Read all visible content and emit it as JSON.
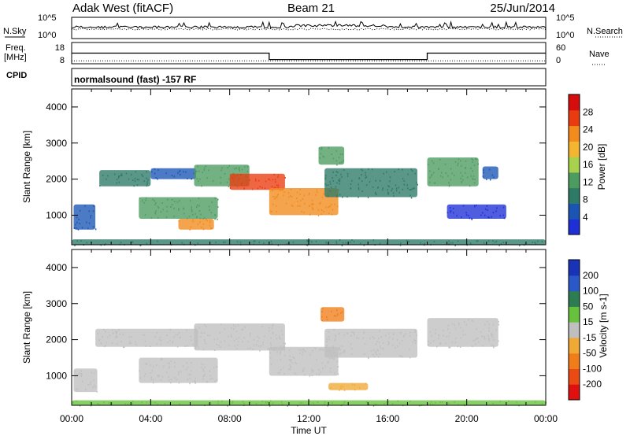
{
  "header": {
    "site": "Adak West (fitACF)",
    "beam": "Beam 21",
    "date": "25/Jun/2014"
  },
  "noise_panel": {
    "left_label": "N.Sky",
    "right_label": "N.Search",
    "left_ticks": [
      "10^5",
      "10^0"
    ],
    "right_ticks": [
      "10^5",
      "10^0"
    ]
  },
  "freq_panel": {
    "left_label_line1": "Freq.",
    "left_label_line2": "[MHz]",
    "right_label": "Nave",
    "left_ticks": [
      "18",
      "8"
    ],
    "right_ticks": [
      "60",
      "0"
    ],
    "freq_steps": [
      {
        "t": 0,
        "v": 13
      },
      {
        "t": 10,
        "v": 10
      },
      {
        "t": 18,
        "v": 13
      },
      {
        "t": 24,
        "v": 13
      }
    ],
    "nave_level": 8
  },
  "cpid_panel": {
    "label": "CPID",
    "text": "normalsound (fast) -157 RF"
  },
  "axes": {
    "ylabel": "Slant Range [km]",
    "yticks": [
      "1000",
      "2000",
      "3000",
      "4000"
    ],
    "xlabel": "Time UT",
    "xticks": [
      "00:00",
      "04:00",
      "08:00",
      "12:00",
      "16:00",
      "20:00",
      "00:00"
    ],
    "ylim": [
      180,
      4500
    ]
  },
  "power_colorbar": {
    "title": "Power [dB]",
    "ticks": [
      "4",
      "8",
      "12",
      "16",
      "20",
      "24",
      "28"
    ],
    "colors": [
      "#1f2fd6",
      "#1a55b4",
      "#2d7a66",
      "#4c9b60",
      "#a8d24e",
      "#f4b531",
      "#f28a1c",
      "#ea3b10",
      "#d50d0d"
    ]
  },
  "velocity_colorbar": {
    "title": "Velocity [m s-1]",
    "ticks": [
      "200",
      "100",
      "50",
      "15",
      "-15",
      "-50",
      "-100",
      "-200"
    ],
    "colors": [
      "#1933b8",
      "#2a58c8",
      "#2c7d52",
      "#66c23c",
      "#bfbfbf",
      "#f1a935",
      "#f07d1a",
      "#ea4a14",
      "#e01010"
    ]
  },
  "chart_data": {
    "type": "heatmap",
    "x_unit": "hours UT",
    "y_unit": "km",
    "xlim": [
      0,
      24
    ],
    "ylim": [
      180,
      4500
    ],
    "power_regions": [
      {
        "t0": 1.4,
        "t1": 4.0,
        "r_bottom": 1800,
        "r_top": 2250,
        "color": "#2d7a66"
      },
      {
        "t0": 4.0,
        "t1": 6.3,
        "r_bottom": 2000,
        "r_top": 2300,
        "color": "#1a55b4"
      },
      {
        "t0": 0.1,
        "t1": 1.2,
        "r_bottom": 600,
        "r_top": 1300,
        "color": "#1a55b4"
      },
      {
        "t0": 3.4,
        "t1": 7.4,
        "r_bottom": 900,
        "r_top": 1500,
        "color": "#4c9b60"
      },
      {
        "t0": 5.4,
        "t1": 7.2,
        "r_bottom": 600,
        "r_top": 900,
        "color": "#f28a1c"
      },
      {
        "t0": 6.2,
        "t1": 9.0,
        "r_bottom": 1800,
        "r_top": 2400,
        "color": "#4c9b60"
      },
      {
        "t0": 8.0,
        "t1": 10.8,
        "r_bottom": 1700,
        "r_top": 2150,
        "color": "#ea3b10"
      },
      {
        "t0": 10.0,
        "t1": 13.5,
        "r_bottom": 1000,
        "r_top": 1750,
        "color": "#f28a1c"
      },
      {
        "t0": 12.8,
        "t1": 17.5,
        "r_bottom": 1500,
        "r_top": 2300,
        "color": "#2d7a66"
      },
      {
        "t0": 12.5,
        "t1": 13.8,
        "r_bottom": 2400,
        "r_top": 2900,
        "color": "#4c9b60"
      },
      {
        "t0": 18.0,
        "t1": 20.6,
        "r_bottom": 1800,
        "r_top": 2600,
        "color": "#4c9b60"
      },
      {
        "t0": 20.8,
        "t1": 21.6,
        "r_bottom": 2000,
        "r_top": 2350,
        "color": "#1a55b4"
      },
      {
        "t0": 19.0,
        "t1": 22.0,
        "r_bottom": 900,
        "r_top": 1300,
        "color": "#1f2fd6"
      },
      {
        "t0": 0.0,
        "t1": 24.0,
        "r_bottom": 180,
        "r_top": 330,
        "color": "#2d7a66"
      }
    ],
    "velocity_regions": [
      {
        "t0": 1.2,
        "t1": 6.4,
        "r_bottom": 1800,
        "r_top": 2300,
        "color": "#bfbfbf"
      },
      {
        "t0": 0.1,
        "t1": 1.3,
        "r_bottom": 550,
        "r_top": 1200,
        "color": "#bfbfbf"
      },
      {
        "t0": 3.4,
        "t1": 7.4,
        "r_bottom": 800,
        "r_top": 1500,
        "color": "#bfbfbf"
      },
      {
        "t0": 6.2,
        "t1": 10.8,
        "r_bottom": 1700,
        "r_top": 2450,
        "color": "#bfbfbf"
      },
      {
        "t0": 10.0,
        "t1": 13.5,
        "r_bottom": 1000,
        "r_top": 1800,
        "color": "#bfbfbf"
      },
      {
        "t0": 12.8,
        "t1": 17.5,
        "r_bottom": 1500,
        "r_top": 2300,
        "color": "#bfbfbf"
      },
      {
        "t0": 12.6,
        "t1": 13.8,
        "r_bottom": 2500,
        "r_top": 2900,
        "color": "#f07d1a"
      },
      {
        "t0": 18.0,
        "t1": 21.6,
        "r_bottom": 1800,
        "r_top": 2600,
        "color": "#bfbfbf"
      },
      {
        "t0": 13.0,
        "t1": 15.0,
        "r_bottom": 600,
        "r_top": 800,
        "color": "#f1a935"
      },
      {
        "t0": 0.0,
        "t1": 24.0,
        "r_bottom": 180,
        "r_top": 320,
        "color": "#66c23c"
      }
    ]
  }
}
